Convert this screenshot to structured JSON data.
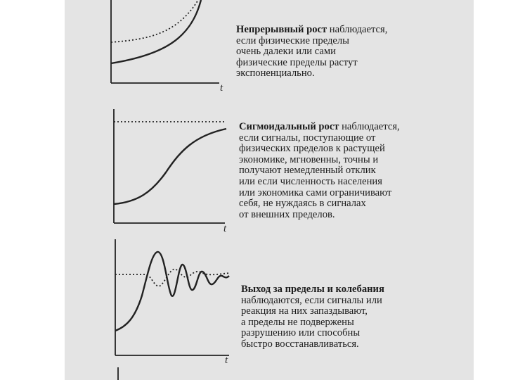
{
  "axis_label": "t",
  "sections": [
    {
      "id": "continuous",
      "bold": "Непрерывный рост",
      "lines": [
        " наблюдается,",
        "если физические пределы",
        "очень далеки или сами",
        "физические пределы растут",
        "экспоненциально."
      ]
    },
    {
      "id": "sigmoid",
      "bold": "Сигмоидальный рост",
      "lines": [
        " наблюдается,",
        "если сигналы, поступающие от",
        "физических пределов к растущей",
        "экономике, мгновенны, точны и",
        "получают немедленный отклик",
        "или если численность населения",
        "или экономика сами ограничивают",
        "себя, не нуждаясь в сигналах",
        "от внешних пределов."
      ]
    },
    {
      "id": "overshoot",
      "bold": "Выход за пределы и колебания",
      "lines": [
        "",
        "наблюдаются, если сигналы или",
        "реакция на них запаздывают,",
        "а пределы не подвержены",
        "разрушению или способны",
        "быстро восстанавливаться."
      ]
    }
  ]
}
